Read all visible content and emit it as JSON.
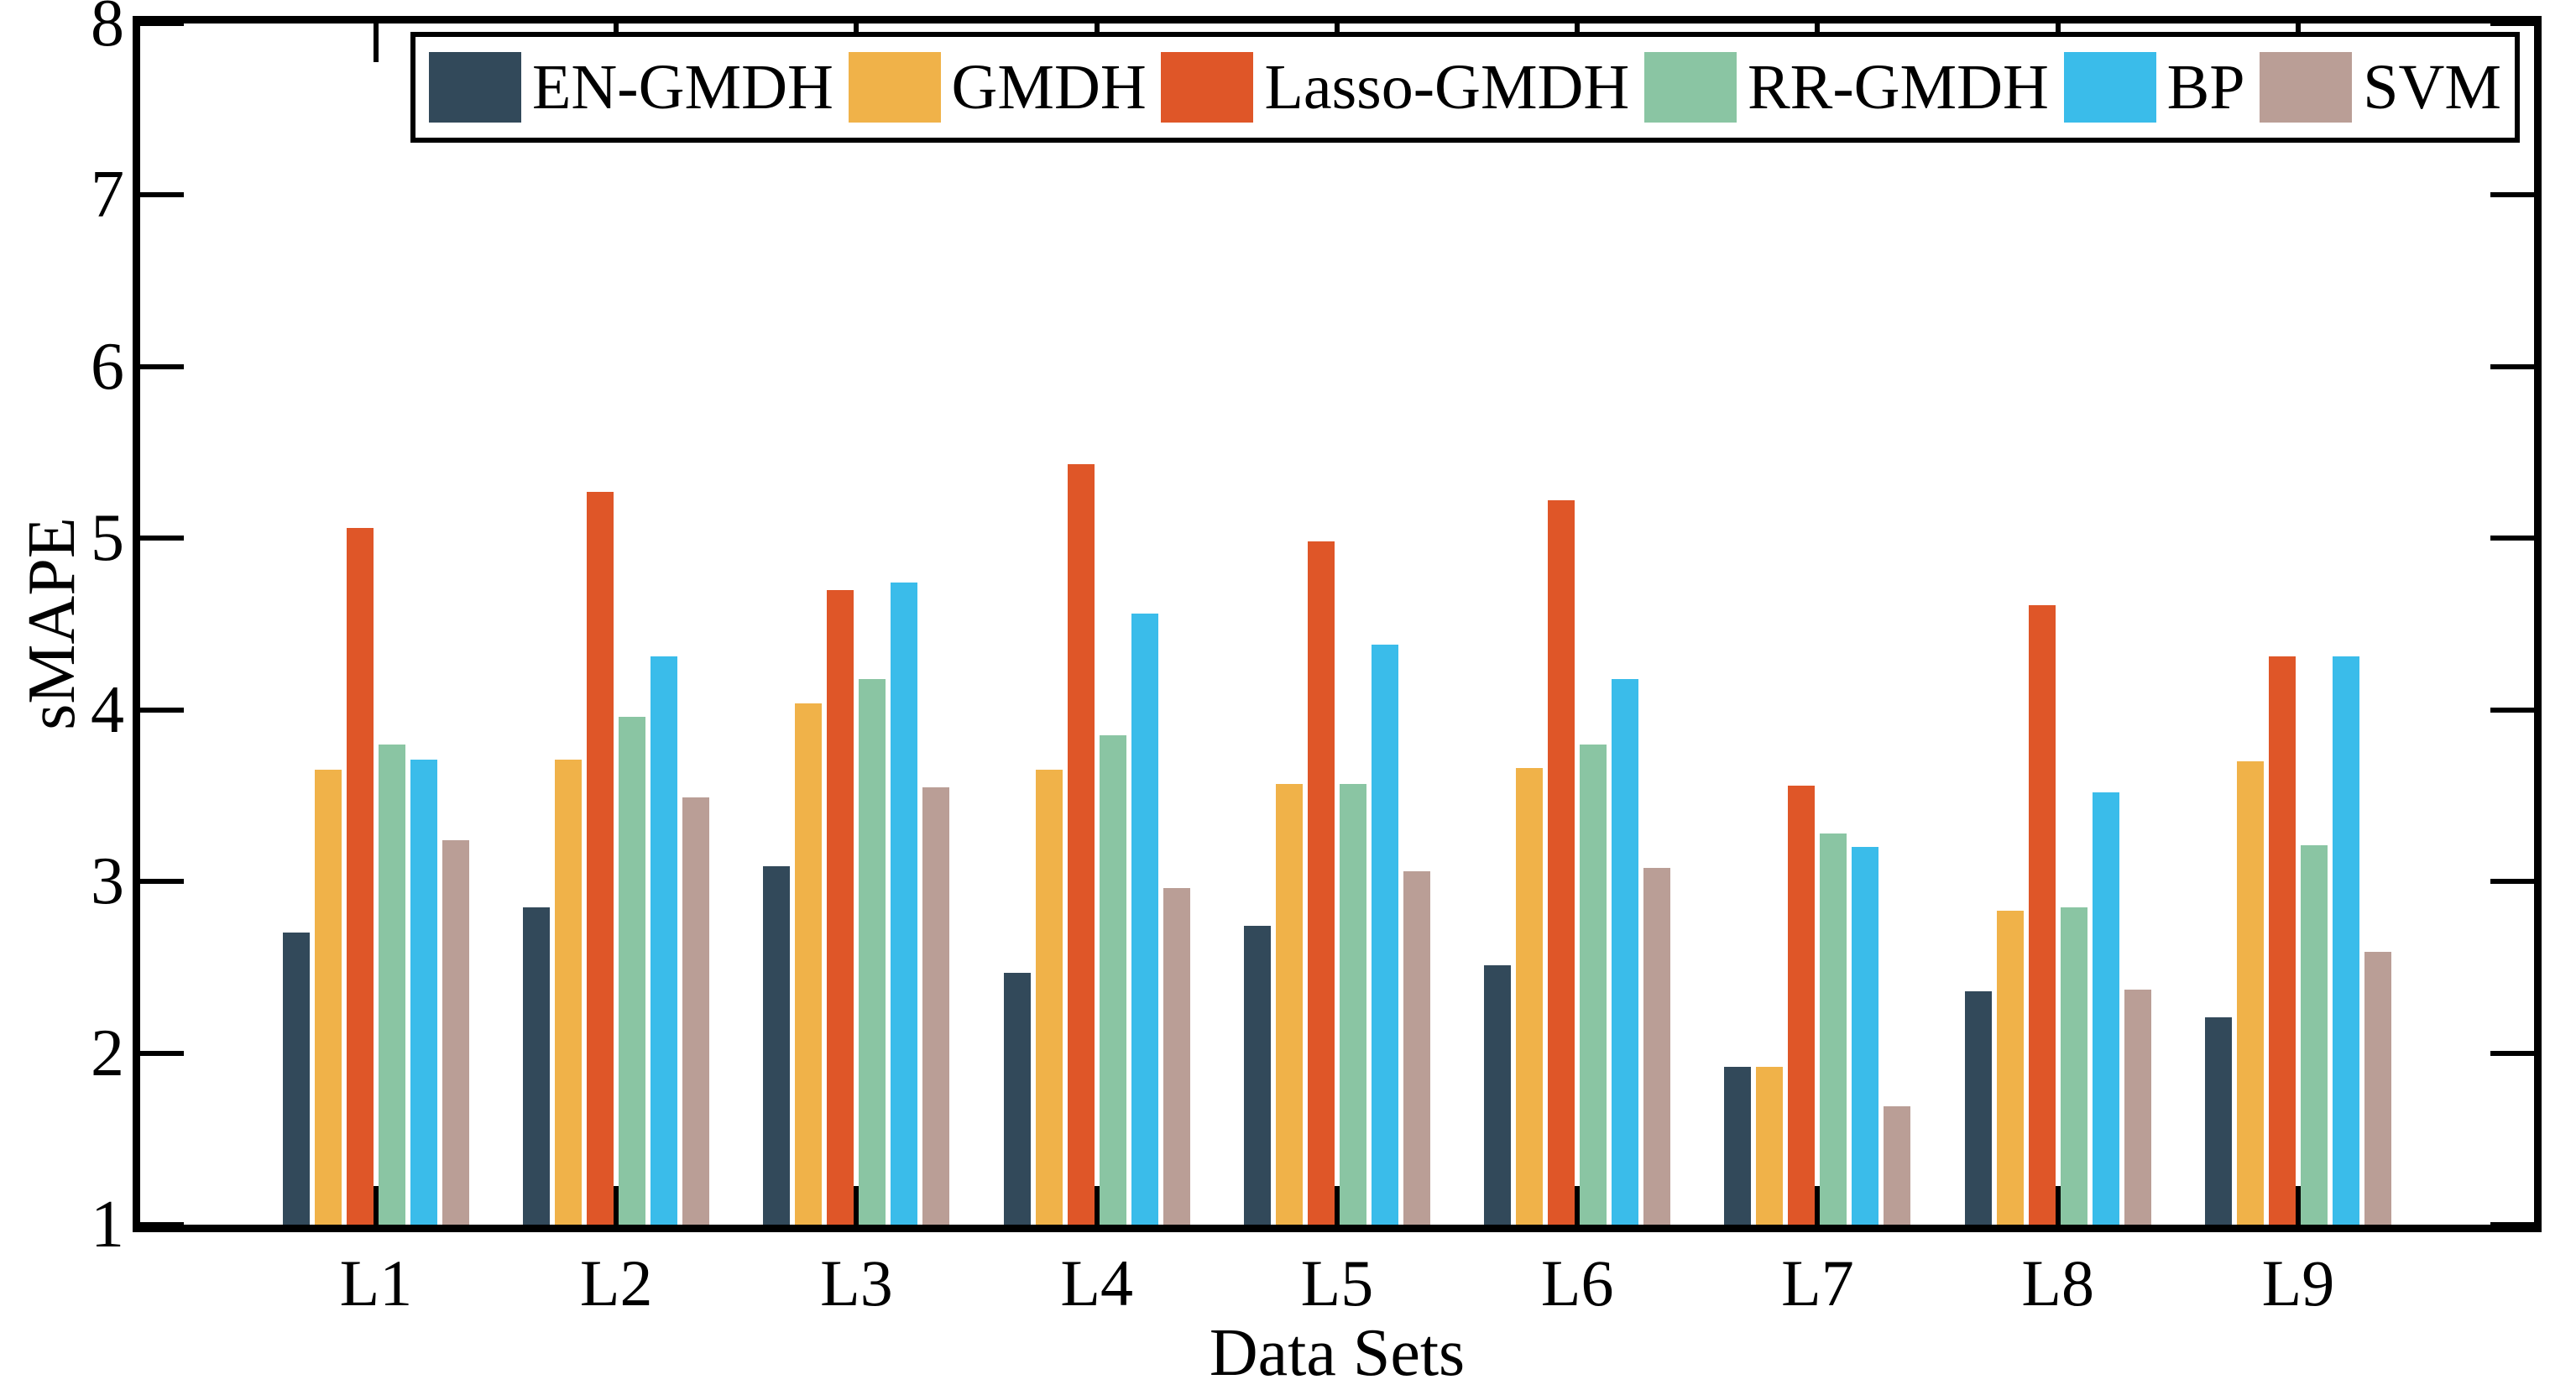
{
  "figure": {
    "background": "#ffffff",
    "axis_color": "#000000"
  },
  "chart_data": {
    "type": "bar",
    "title": "",
    "xlabel": "Data Sets",
    "ylabel": "sMAPE",
    "categories": [
      "L1",
      "L2",
      "L3",
      "L4",
      "L5",
      "L6",
      "L7",
      "L8",
      "L9"
    ],
    "series": [
      {
        "name": "EN-GMDH",
        "color": "#32495A",
        "values": [
          2.7,
          2.85,
          3.09,
          2.47,
          2.74,
          2.51,
          1.92,
          2.36,
          2.21
        ]
      },
      {
        "name": "GMDH",
        "color": "#F0B249",
        "values": [
          3.65,
          3.71,
          4.04,
          3.65,
          3.57,
          3.66,
          1.92,
          2.83,
          3.7
        ]
      },
      {
        "name": "Lasso-GMDH",
        "color": "#DF5628",
        "values": [
          5.06,
          5.27,
          4.7,
          5.43,
          4.98,
          5.22,
          3.56,
          4.61,
          4.31
        ]
      },
      {
        "name": "RR-GMDH",
        "color": "#8AC5A3",
        "values": [
          3.8,
          3.96,
          4.18,
          3.85,
          3.57,
          3.8,
          3.28,
          2.85,
          3.21
        ]
      },
      {
        "name": "BP",
        "color": "#3ABCEA",
        "values": [
          3.71,
          4.31,
          4.74,
          4.56,
          4.38,
          4.18,
          3.2,
          3.52,
          4.31
        ]
      },
      {
        "name": "SVM",
        "color": "#BA9E96",
        "values": [
          3.24,
          3.49,
          3.55,
          2.96,
          3.06,
          3.08,
          1.69,
          2.37,
          2.59
        ]
      }
    ],
    "ylim": [
      1,
      8
    ],
    "yticks": [
      1,
      2,
      3,
      4,
      5,
      6,
      7,
      8
    ],
    "grid": false,
    "legend_position": "top-inside",
    "box": true,
    "ticks_direction": "in"
  }
}
